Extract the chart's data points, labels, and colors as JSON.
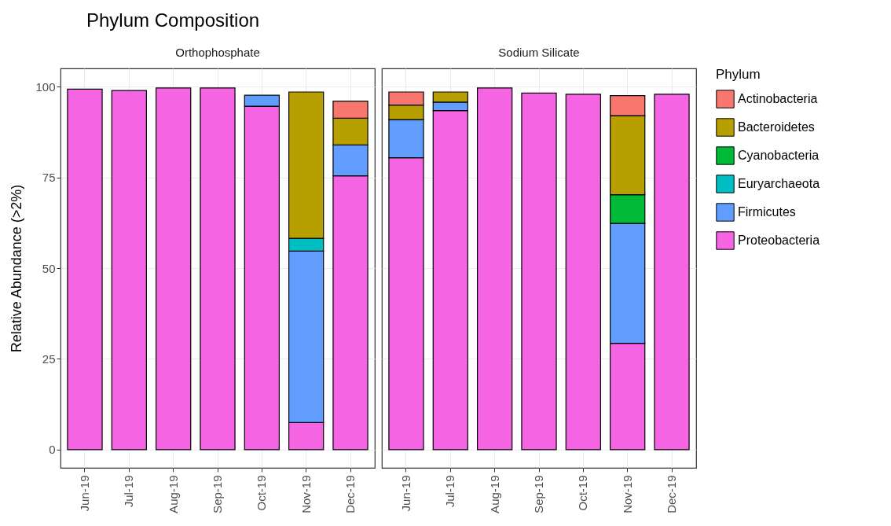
{
  "chart_data": [
    {
      "type": "bar",
      "title": "Phylum Composition",
      "subtitle": "Orthophosphate",
      "ylabel": "Relative Abundance (>2%)",
      "stacked": true,
      "grid": true,
      "legend": false,
      "categories": [
        "Jun-19",
        "Jul-19",
        "Aug-19",
        "Sep-19",
        "Oct-19",
        "Nov-19",
        "Dec-19"
      ],
      "ylim": [
        -5,
        105
      ],
      "yticks": [
        0,
        25,
        50,
        75,
        100
      ],
      "series": [
        {
          "color": "#f564e3",
          "values": [
            99.3,
            98.9,
            99.6,
            99.6,
            94.6,
            7.5,
            75.4
          ]
        },
        {
          "color": "#619cff",
          "values": [
            null,
            null,
            null,
            null,
            3.0,
            47.2,
            8.5
          ]
        },
        {
          "color": "#00bfc4",
          "values": [
            null,
            null,
            null,
            null,
            null,
            3.5,
            null
          ]
        },
        {
          "color": "#b79f00",
          "values": [
            null,
            null,
            null,
            null,
            null,
            40.3,
            7.4
          ]
        },
        {
          "color": "#f8766d",
          "values": [
            null,
            null,
            null,
            null,
            null,
            null,
            4.7
          ]
        }
      ]
    },
    {
      "type": "bar",
      "subtitle": "Sodium Silicate",
      "legend_title": "Phylum",
      "stacked": true,
      "grid": true,
      "legend": "right",
      "tick_labels": "x",
      "categories": [
        "Jun-19",
        "Jul-19",
        "Aug-19",
        "Sep-19",
        "Oct-19",
        "Nov-19",
        "Dec-19"
      ],
      "ylim": [
        -5,
        105
      ],
      "yticks": [
        0,
        25,
        50,
        75,
        100
      ],
      "series": [
        {
          "name": "Proteobacteria",
          "color": "#f564e3",
          "values": [
            80.4,
            93.4,
            99.6,
            98.2,
            97.9,
            29.3,
            97.9
          ]
        },
        {
          "name": "Firmicutes",
          "color": "#619cff",
          "values": [
            10.5,
            2.3,
            null,
            null,
            null,
            33.0,
            null
          ]
        },
        {
          "name": "Euryarchaeota",
          "color": "#00bfc4",
          "values": [
            null,
            null,
            null,
            null,
            null,
            null,
            null
          ]
        },
        {
          "name": "Cyanobacteria",
          "color": "#00ba38",
          "values": [
            null,
            null,
            null,
            null,
            null,
            7.9,
            null
          ]
        },
        {
          "name": "Bacteroidetes",
          "color": "#b79f00",
          "values": [
            4.0,
            2.8,
            null,
            null,
            null,
            21.8,
            null
          ]
        },
        {
          "name": "Actinobacteria",
          "color": "#f8766d",
          "values": [
            3.6,
            null,
            null,
            null,
            null,
            5.5,
            null
          ]
        }
      ]
    }
  ]
}
